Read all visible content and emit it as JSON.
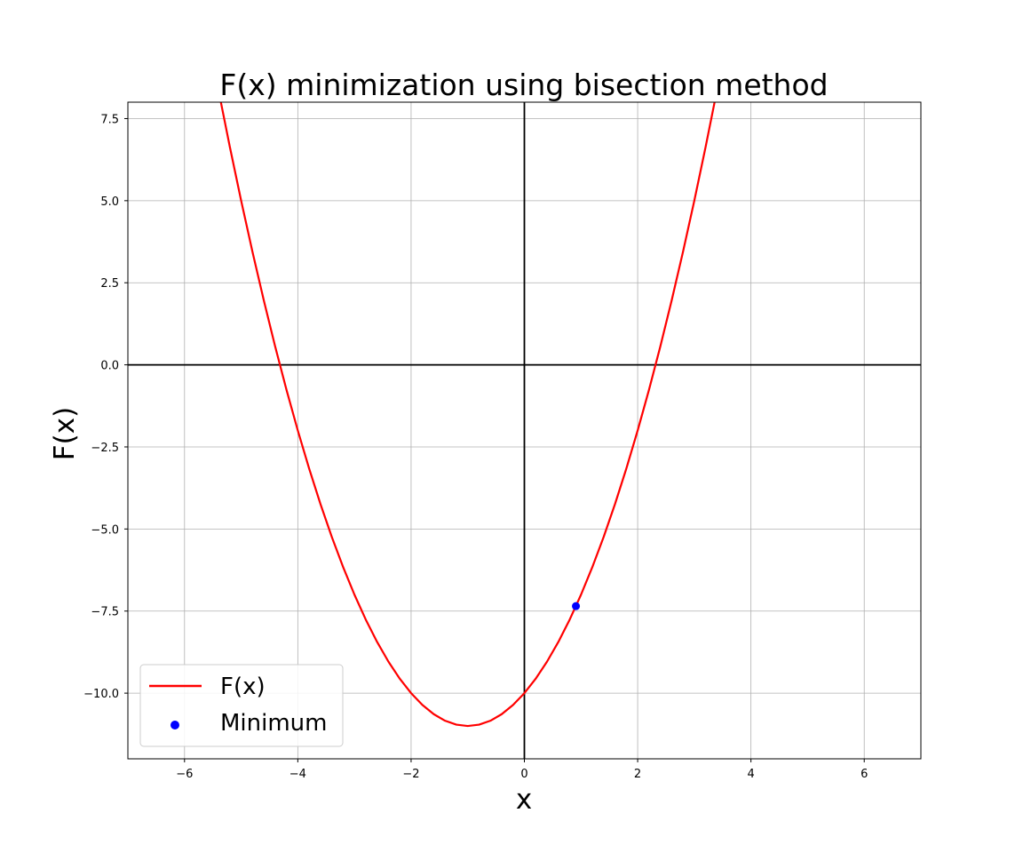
{
  "chart_data": {
    "type": "line",
    "title": "F(x) minimization using bisection method",
    "xlabel": "x",
    "ylabel": "F(x)",
    "xlim": [
      -7,
      7
    ],
    "ylim": [
      -12,
      8
    ],
    "xticks": [
      -6,
      -4,
      -2,
      0,
      2,
      4,
      6
    ],
    "xtick_labels": [
      "−6",
      "−4",
      "−2",
      "0",
      "2",
      "4",
      "6"
    ],
    "yticks": [
      -10,
      -7.5,
      -5,
      -2.5,
      0,
      2.5,
      5,
      7.5
    ],
    "ytick_labels": [
      "−10.0",
      "−7.5",
      "−5.0",
      "−2.5",
      "0.0",
      "2.5",
      "5.0",
      "7.5"
    ],
    "grid": true,
    "axis_lines_at_zero": true,
    "legend_position": "lower-left",
    "series": [
      {
        "name": "F(x)",
        "kind": "line",
        "color": "#ff0000",
        "x": [
          -5.4,
          -5.2,
          -5.0,
          -4.8,
          -4.6,
          -4.4,
          -4.2,
          -4.0,
          -3.8,
          -3.6,
          -3.4,
          -3.2,
          -3.0,
          -2.8,
          -2.6,
          -2.4,
          -2.2,
          -2.0,
          -1.8,
          -1.6,
          -1.4,
          -1.2,
          -1.0,
          -0.8,
          -0.6,
          -0.4,
          -0.2,
          0.0,
          0.2,
          0.4,
          0.6,
          0.8,
          1.0,
          1.2,
          1.4,
          1.6,
          1.8,
          2.0,
          2.2,
          2.4,
          2.6,
          2.8,
          3.0,
          3.2,
          3.4
        ],
        "y": [
          8.36,
          6.64,
          5.0,
          3.44,
          1.96,
          0.56,
          -0.76,
          -2.0,
          -3.16,
          -4.24,
          -5.24,
          -6.16,
          -7.0,
          -7.76,
          -8.44,
          -9.04,
          -9.56,
          -10.0,
          -10.36,
          -10.64,
          -10.84,
          -10.96,
          -11.0,
          -10.96,
          -10.84,
          -10.64,
          -10.36,
          -10.0,
          -9.56,
          -9.04,
          -8.44,
          -7.76,
          -7.0,
          -6.16,
          -5.24,
          -4.24,
          -3.16,
          -2.0,
          -0.76,
          0.56,
          1.96,
          3.44,
          5.0,
          6.64,
          8.36
        ]
      },
      {
        "name": "Minimum",
        "kind": "scatter",
        "color": "#0000ff",
        "x": [
          0.91
        ],
        "y": [
          -7.35
        ]
      }
    ]
  }
}
